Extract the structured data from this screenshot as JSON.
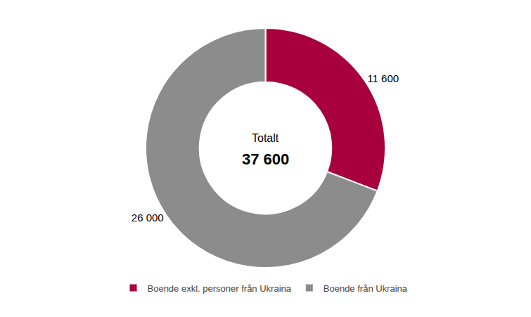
{
  "chart_data": {
    "type": "donut",
    "categories": [
      "Boende exkl. personer från Ukraina",
      "Boende från Ukraina"
    ],
    "values": [
      11600,
      26000
    ],
    "value_labels": [
      "11 600",
      "26 000"
    ],
    "data_labels": true,
    "colors": [
      "#A8003C",
      "#8C8C8C"
    ],
    "annotations": [
      "Totalt",
      "37 600"
    ],
    "legend": "bottom"
  }
}
